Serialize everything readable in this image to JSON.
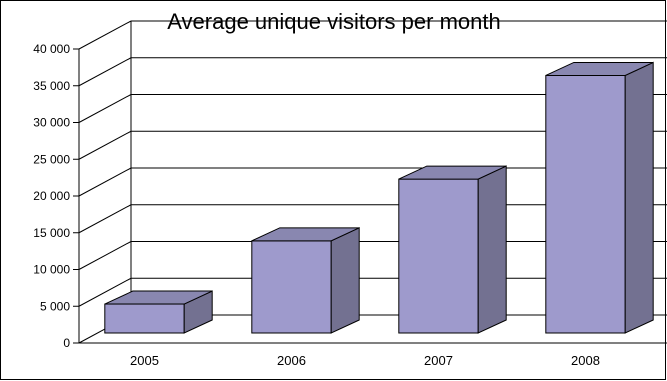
{
  "chart_data": {
    "type": "bar",
    "title": "Average unique visitors per month",
    "categories": [
      "2005",
      "2006",
      "2007",
      "2008"
    ],
    "values": [
      5300,
      13900,
      22300,
      36400
    ],
    "ylim": [
      0,
      40000
    ],
    "yticks": [
      0,
      5000,
      10000,
      15000,
      20000,
      25000,
      30000,
      35000,
      40000
    ],
    "ytick_labels": [
      "0",
      "5 000",
      "10 000",
      "15 000",
      "20 000",
      "25 000",
      "30 000",
      "35 000",
      "40 000"
    ],
    "grid": true,
    "legend": "none",
    "style": "3d",
    "colors": {
      "front": "#9e9acc",
      "side": "#737191",
      "top": "#8987b0",
      "edge": "#000000"
    }
  }
}
